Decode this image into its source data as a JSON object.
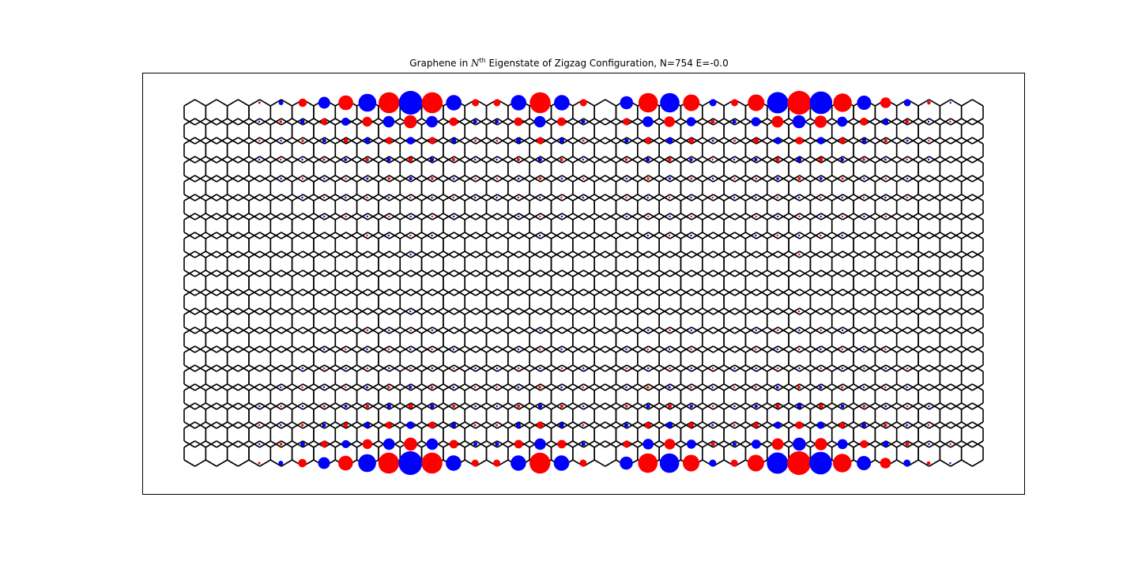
{
  "title": {
    "prefix": "Graphene in ",
    "symbol": "N",
    "superscript": "th",
    "suffix": " Eigenstate of Zigzag Configuration, N=754 E=-0.0"
  },
  "chart_data": {
    "type": "scatter",
    "title": "Graphene in N^th Eigenstate of Zigzag Configuration, N=754 E=-0.0",
    "description_lattice": "honeycomb lattice, zigzag edges top and bottom",
    "n_atoms": 754,
    "energy": "-0.0",
    "xlabel": "",
    "ylabel": "",
    "axes_visible": false,
    "grid": false,
    "colors": {
      "positive": "#ff0000",
      "negative": "#0000ff",
      "bonds": "#000000"
    },
    "edge_amplitude_profile": [
      0.0,
      0.1,
      0.2,
      0.35,
      0.5,
      0.62,
      0.75,
      0.88,
      1.0,
      0.88,
      0.65,
      0.3,
      0.3,
      0.65,
      0.88,
      0.65,
      0.3,
      0.0,
      0.55,
      0.82,
      0.82,
      0.7,
      0.3,
      0.3,
      0.7,
      0.9,
      1.0,
      0.95,
      0.78,
      0.6,
      0.45,
      0.3,
      0.15,
      0.05,
      0.0,
      0.0,
      0.0
    ],
    "edge_sign_pattern": [
      1,
      1,
      -1,
      1,
      -1,
      1,
      -1,
      1,
      -1,
      1,
      -1,
      1,
      1,
      -1,
      1,
      -1,
      1,
      1,
      -1,
      1,
      -1,
      1,
      -1,
      1,
      1,
      -1,
      1,
      -1,
      1,
      -1,
      1,
      -1,
      1,
      -1,
      1,
      1,
      1
    ],
    "decay_by_row_from_edge": [
      1.0,
      0.55,
      0.32,
      0.2,
      0.13,
      0.08,
      0.05,
      0.03,
      0.02,
      0.0
    ]
  }
}
